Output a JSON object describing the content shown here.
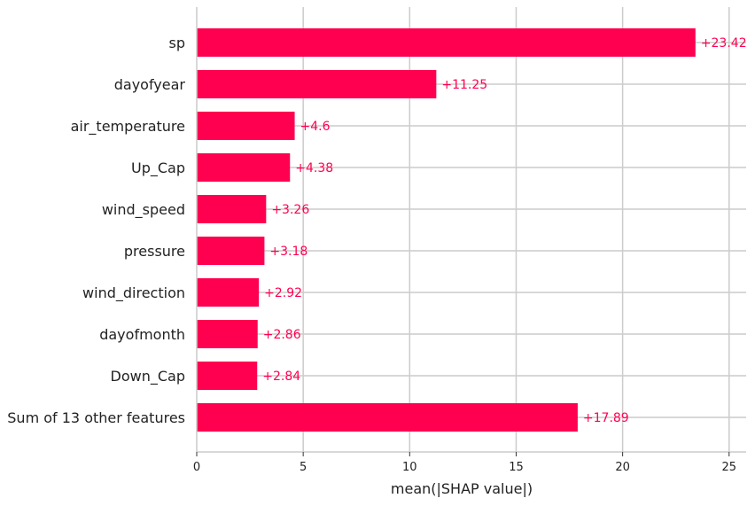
{
  "chart_data": {
    "type": "bar",
    "orientation": "horizontal",
    "categories": [
      "sp",
      "dayofyear",
      "air_temperature",
      "Up_Cap",
      "wind_speed",
      "pressure",
      "wind_direction",
      "dayofmonth",
      "Down_Cap",
      "Sum of 13 other features"
    ],
    "values": [
      23.42,
      11.25,
      4.6,
      4.38,
      3.26,
      3.18,
      2.92,
      2.86,
      2.84,
      17.89
    ],
    "value_labels": [
      "+23.42",
      "+11.25",
      "+4.6",
      "+4.38",
      "+3.26",
      "+3.18",
      "+2.92",
      "+2.86",
      "+2.84",
      "+17.89"
    ],
    "xlabel": "mean(|SHAP value|)",
    "ylabel": "",
    "title": "",
    "xlim": [
      0,
      25.8
    ],
    "xticks": [
      0,
      5,
      10,
      15,
      20,
      25
    ],
    "grid": true,
    "bar_color": "#ff0051",
    "label_color": "#ff0051"
  }
}
